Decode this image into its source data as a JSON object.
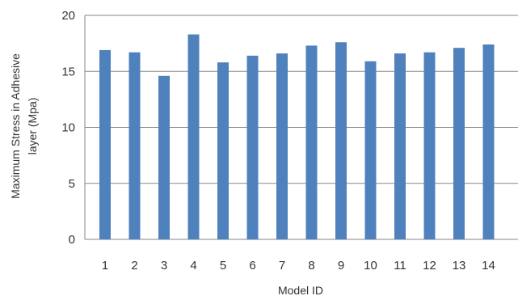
{
  "chart_data": {
    "type": "bar",
    "title": "",
    "xlabel": "Model ID",
    "ylabel_lines": [
      "Maximum Stress in Adhesive",
      "layer (Mpa)"
    ],
    "categories": [
      "1",
      "2",
      "3",
      "4",
      "5",
      "6",
      "7",
      "8",
      "9",
      "10",
      "11",
      "12",
      "13",
      "14"
    ],
    "values": [
      16.9,
      16.7,
      14.6,
      18.3,
      15.8,
      16.4,
      16.6,
      17.3,
      17.6,
      15.9,
      16.6,
      16.7,
      17.1,
      17.4
    ],
    "ylim": [
      0,
      20
    ],
    "yticks": [
      "0",
      "5",
      "10",
      "15",
      "20"
    ],
    "grid": true,
    "legend": "none",
    "colors": {
      "bar": "#4f81bd",
      "grid": "#878787",
      "text": "#333333"
    }
  }
}
